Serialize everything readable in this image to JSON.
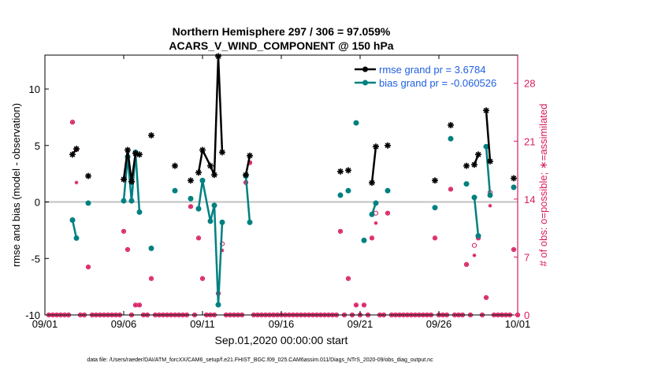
{
  "chart_data": {
    "type": "line",
    "title": "Northern Hemisphere 297 / 306 = 97.059%",
    "subtitle": "ACARS_V_WIND_COMPONENT @ 150 hPa",
    "xlabel": "Sep.01,2020 00:00:00 start",
    "ylabel": "rmse and bias (model - observation)",
    "y2label": "# of obs: o=possible; ∗=assimilated",
    "footer": "data file: /Users/raeder/DAI/ATM_forcXX/CAM6_setup/f.e21.FHIST_BGC.f09_025.CAM6assim.011/Diags_NTrS_2020-09/obs_diag_output.nc",
    "xlim": [
      0,
      30
    ],
    "ylim": [
      -10,
      13
    ],
    "y2lim": [
      0,
      31.4
    ],
    "x_ticks": [
      0,
      5,
      10,
      15,
      20,
      25,
      30
    ],
    "x_tick_labels": [
      "09/01",
      "09/06",
      "09/11",
      "09/16",
      "09/21",
      "09/26",
      "10/01"
    ],
    "y_ticks": [
      -10,
      -5,
      0,
      5,
      10
    ],
    "y2_ticks": [
      0,
      7,
      14,
      21,
      28
    ],
    "grid": false,
    "legend_position": "top-right",
    "colors": {
      "rmse": "#000000",
      "bias": "#008080",
      "obs": "#d81b60",
      "zero_line": "#c0c0c0"
    },
    "series": [
      {
        "name": "rmse grand pr = 3.6784",
        "color": "#000000",
        "points": [
          [
            1.75,
            4.2
          ],
          [
            2.0,
            4.7
          ],
          [
            2.75,
            2.3
          ],
          [
            5.0,
            2.0
          ],
          [
            5.25,
            4.6
          ],
          [
            5.5,
            1.8
          ],
          [
            5.75,
            4.3
          ],
          [
            6.0,
            4.2
          ],
          [
            6.75,
            5.9
          ],
          [
            8.25,
            3.2
          ],
          [
            9.25,
            1.9
          ],
          [
            9.75,
            2.6
          ],
          [
            10.0,
            4.6
          ],
          [
            10.5,
            3.2
          ],
          [
            10.75,
            2.4
          ],
          [
            11.0,
            12.9
          ],
          [
            11.25,
            4.4
          ],
          [
            12.75,
            2.4
          ],
          [
            13.0,
            4.1
          ],
          [
            18.75,
            2.7
          ],
          [
            19.25,
            2.8
          ],
          [
            20.75,
            1.7
          ],
          [
            21.0,
            4.9
          ],
          [
            21.75,
            5.0
          ],
          [
            24.75,
            1.9
          ],
          [
            25.75,
            6.8
          ],
          [
            26.75,
            3.2
          ],
          [
            27.25,
            3.3
          ],
          [
            27.5,
            4.2
          ],
          [
            28.0,
            8.1
          ],
          [
            28.25,
            3.6
          ],
          [
            29.75,
            2.1
          ]
        ],
        "segments": [
          [
            1.75,
            2.0
          ],
          [
            5.0,
            6.0
          ],
          [
            9.75,
            11.25
          ],
          [
            12.75,
            13.0
          ],
          [
            20.75,
            21.0
          ],
          [
            27.25,
            27.5
          ],
          [
            28.0,
            28.25
          ]
        ]
      },
      {
        "name": "bias grand pr = -0.060526",
        "color": "#008080",
        "points": [
          [
            1.75,
            -1.6
          ],
          [
            2.0,
            -3.2
          ],
          [
            2.75,
            -0.1
          ],
          [
            5.0,
            0.1
          ],
          [
            5.25,
            4.0
          ],
          [
            5.5,
            0.1
          ],
          [
            5.75,
            4.4
          ],
          [
            6.0,
            -0.9
          ],
          [
            6.75,
            -4.1
          ],
          [
            8.25,
            1.0
          ],
          [
            9.25,
            0.3
          ],
          [
            9.75,
            -0.6
          ],
          [
            10.0,
            1.9
          ],
          [
            10.5,
            -1.7
          ],
          [
            10.75,
            -0.3
          ],
          [
            11.0,
            -9.1
          ],
          [
            11.25,
            -1.8
          ],
          [
            12.75,
            2.3
          ],
          [
            13.0,
            -1.8
          ],
          [
            18.75,
            0.6
          ],
          [
            19.25,
            1.0
          ],
          [
            19.75,
            7.0
          ],
          [
            20.25,
            -3.4
          ],
          [
            20.75,
            -1.1
          ],
          [
            21.0,
            -0.1
          ],
          [
            21.75,
            1.0
          ],
          [
            24.75,
            -0.5
          ],
          [
            25.75,
            5.6
          ],
          [
            26.75,
            1.6
          ],
          [
            27.25,
            0.4
          ],
          [
            27.5,
            -3.0
          ],
          [
            28.0,
            4.9
          ],
          [
            28.25,
            0.6
          ],
          [
            29.75,
            1.3
          ]
        ],
        "segments": [
          [
            1.75,
            2.0
          ],
          [
            5.0,
            6.0
          ],
          [
            9.75,
            11.25
          ],
          [
            12.75,
            13.0
          ],
          [
            20.75,
            21.0
          ],
          [
            27.25,
            27.5
          ],
          [
            28.0,
            28.25
          ]
        ]
      }
    ],
    "obs_possible": [
      [
        0.25,
        0
      ],
      [
        0.5,
        0
      ],
      [
        0.75,
        0
      ],
      [
        1.0,
        0
      ],
      [
        1.25,
        0
      ],
      [
        1.5,
        0
      ],
      [
        1.75,
        23.3
      ],
      [
        2.0,
        20.0
      ],
      [
        2.25,
        0
      ],
      [
        2.5,
        0
      ],
      [
        2.75,
        5.8
      ],
      [
        3.0,
        0
      ],
      [
        3.25,
        0
      ],
      [
        3.5,
        0
      ],
      [
        3.75,
        0
      ],
      [
        4.0,
        0
      ],
      [
        4.25,
        0
      ],
      [
        4.5,
        0
      ],
      [
        4.75,
        0
      ],
      [
        5.0,
        10.1
      ],
      [
        5.25,
        7.9
      ],
      [
        5.5,
        0
      ],
      [
        5.75,
        1.2
      ],
      [
        6.0,
        1.2
      ],
      [
        6.25,
        0
      ],
      [
        6.5,
        0
      ],
      [
        6.75,
        4.4
      ],
      [
        7.0,
        0
      ],
      [
        7.25,
        0
      ],
      [
        7.5,
        0
      ],
      [
        7.75,
        0
      ],
      [
        8.0,
        0
      ],
      [
        8.25,
        0
      ],
      [
        8.5,
        0
      ],
      [
        8.75,
        0
      ],
      [
        9.0,
        0
      ],
      [
        9.25,
        13.1
      ],
      [
        9.5,
        0
      ],
      [
        9.75,
        9.3
      ],
      [
        10.0,
        4.4
      ],
      [
        10.25,
        0
      ],
      [
        10.5,
        0
      ],
      [
        10.75,
        0
      ],
      [
        11.0,
        2.6
      ],
      [
        11.25,
        8.6
      ],
      [
        11.5,
        0
      ],
      [
        11.75,
        0
      ],
      [
        12.0,
        0
      ],
      [
        12.25,
        0
      ],
      [
        12.5,
        0
      ],
      [
        12.75,
        16.0
      ],
      [
        13.0,
        18.4
      ],
      [
        13.25,
        0
      ],
      [
        13.5,
        0
      ],
      [
        13.75,
        0
      ],
      [
        14.0,
        0
      ],
      [
        14.25,
        0
      ],
      [
        14.5,
        0
      ],
      [
        14.75,
        0
      ],
      [
        15.0,
        0
      ],
      [
        15.25,
        0
      ],
      [
        15.5,
        0
      ],
      [
        15.75,
        0
      ],
      [
        16.0,
        0
      ],
      [
        16.25,
        0
      ],
      [
        16.5,
        0
      ],
      [
        16.75,
        0
      ],
      [
        17.0,
        0
      ],
      [
        17.25,
        0
      ],
      [
        17.5,
        0
      ],
      [
        17.75,
        0
      ],
      [
        18.0,
        0
      ],
      [
        18.25,
        0
      ],
      [
        18.5,
        0
      ],
      [
        18.75,
        10.1
      ],
      [
        19.0,
        0
      ],
      [
        19.25,
        4.4
      ],
      [
        19.5,
        0
      ],
      [
        19.75,
        1.2
      ],
      [
        20.0,
        0
      ],
      [
        20.25,
        1.2
      ],
      [
        20.5,
        0
      ],
      [
        20.75,
        9.3
      ],
      [
        21.0,
        12.3
      ],
      [
        21.25,
        0
      ],
      [
        21.5,
        0
      ],
      [
        21.75,
        12.3
      ],
      [
        22.0,
        0
      ],
      [
        22.25,
        0
      ],
      [
        22.5,
        0
      ],
      [
        22.75,
        0
      ],
      [
        23.0,
        0
      ],
      [
        23.25,
        0
      ],
      [
        23.5,
        0
      ],
      [
        23.75,
        0
      ],
      [
        24.0,
        0
      ],
      [
        24.25,
        0
      ],
      [
        24.5,
        0
      ],
      [
        24.75,
        9.3
      ],
      [
        25.0,
        0
      ],
      [
        25.25,
        0
      ],
      [
        25.5,
        0
      ],
      [
        25.75,
        15.2
      ],
      [
        26.0,
        0
      ],
      [
        26.25,
        0
      ],
      [
        26.5,
        0
      ],
      [
        26.75,
        6.1
      ],
      [
        27.0,
        0
      ],
      [
        27.25,
        8.4
      ],
      [
        27.5,
        9.3
      ],
      [
        27.75,
        0
      ],
      [
        28.0,
        2.1
      ],
      [
        28.25,
        14.8
      ],
      [
        28.5,
        0
      ],
      [
        28.75,
        0
      ],
      [
        29.0,
        0
      ],
      [
        29.25,
        0
      ],
      [
        29.5,
        0
      ],
      [
        29.75,
        7.9
      ],
      [
        30.0,
        0
      ]
    ],
    "obs_assimilated": [
      [
        0.25,
        0
      ],
      [
        0.5,
        0
      ],
      [
        0.75,
        0
      ],
      [
        1.0,
        0
      ],
      [
        1.25,
        0
      ],
      [
        1.5,
        0
      ],
      [
        1.75,
        23.3
      ],
      [
        2.0,
        16.0
      ],
      [
        2.25,
        0
      ],
      [
        2.5,
        0
      ],
      [
        2.75,
        5.8
      ],
      [
        3.0,
        0
      ],
      [
        3.25,
        0
      ],
      [
        3.5,
        0
      ],
      [
        3.75,
        0
      ],
      [
        4.0,
        0
      ],
      [
        4.25,
        0
      ],
      [
        4.5,
        0
      ],
      [
        4.75,
        0
      ],
      [
        5.0,
        10.1
      ],
      [
        5.25,
        7.9
      ],
      [
        5.5,
        0
      ],
      [
        5.75,
        1.2
      ],
      [
        6.0,
        1.2
      ],
      [
        6.25,
        0
      ],
      [
        6.5,
        0
      ],
      [
        6.75,
        4.4
      ],
      [
        7.0,
        0
      ],
      [
        7.25,
        0
      ],
      [
        7.5,
        0
      ],
      [
        7.75,
        0
      ],
      [
        8.0,
        0
      ],
      [
        8.25,
        0
      ],
      [
        8.5,
        0
      ],
      [
        8.75,
        0
      ],
      [
        9.0,
        0
      ],
      [
        9.25,
        13.1
      ],
      [
        9.5,
        0
      ],
      [
        9.75,
        9.3
      ],
      [
        10.0,
        4.4
      ],
      [
        10.25,
        0
      ],
      [
        10.5,
        0
      ],
      [
        10.75,
        0
      ],
      [
        11.0,
        2.6
      ],
      [
        11.25,
        7.8
      ],
      [
        11.5,
        0
      ],
      [
        11.75,
        0
      ],
      [
        12.0,
        0
      ],
      [
        12.25,
        0
      ],
      [
        12.5,
        0
      ],
      [
        12.75,
        16.0
      ],
      [
        13.0,
        18.4
      ],
      [
        13.25,
        0
      ],
      [
        13.5,
        0
      ],
      [
        13.75,
        0
      ],
      [
        14.0,
        0
      ],
      [
        14.25,
        0
      ],
      [
        14.5,
        0
      ],
      [
        14.75,
        0
      ],
      [
        15.0,
        0
      ],
      [
        15.25,
        0
      ],
      [
        15.5,
        0
      ],
      [
        15.75,
        0
      ],
      [
        16.0,
        0
      ],
      [
        16.25,
        0
      ],
      [
        16.5,
        0
      ],
      [
        16.75,
        0
      ],
      [
        17.0,
        0
      ],
      [
        17.25,
        0
      ],
      [
        17.5,
        0
      ],
      [
        17.75,
        0
      ],
      [
        18.0,
        0
      ],
      [
        18.25,
        0
      ],
      [
        18.5,
        0
      ],
      [
        18.75,
        10.1
      ],
      [
        19.0,
        0
      ],
      [
        19.25,
        4.4
      ],
      [
        19.5,
        0
      ],
      [
        19.75,
        1.2
      ],
      [
        20.0,
        0
      ],
      [
        20.25,
        1.2
      ],
      [
        20.5,
        0
      ],
      [
        20.75,
        9.3
      ],
      [
        21.0,
        11.1
      ],
      [
        21.25,
        0
      ],
      [
        21.5,
        0
      ],
      [
        21.75,
        12.3
      ],
      [
        22.0,
        0
      ],
      [
        22.25,
        0
      ],
      [
        22.5,
        0
      ],
      [
        22.75,
        0
      ],
      [
        23.0,
        0
      ],
      [
        23.25,
        0
      ],
      [
        23.5,
        0
      ],
      [
        23.75,
        0
      ],
      [
        24.0,
        0
      ],
      [
        24.25,
        0
      ],
      [
        24.5,
        0
      ],
      [
        24.75,
        9.3
      ],
      [
        25.0,
        0
      ],
      [
        25.25,
        0
      ],
      [
        25.5,
        0
      ],
      [
        25.75,
        15.2
      ],
      [
        26.0,
        0
      ],
      [
        26.25,
        0
      ],
      [
        26.5,
        0
      ],
      [
        26.75,
        6.1
      ],
      [
        27.0,
        0
      ],
      [
        27.25,
        7.2
      ],
      [
        27.5,
        9.3
      ],
      [
        27.75,
        0
      ],
      [
        28.0,
        2.1
      ],
      [
        28.25,
        13.2
      ],
      [
        28.5,
        0
      ],
      [
        28.75,
        0
      ],
      [
        29.0,
        0
      ],
      [
        29.25,
        0
      ],
      [
        29.5,
        0
      ],
      [
        29.75,
        7.9
      ],
      [
        30.0,
        0
      ]
    ]
  }
}
